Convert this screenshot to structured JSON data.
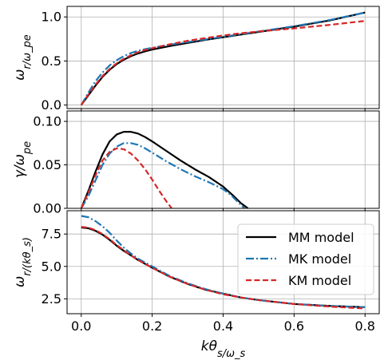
{
  "chart_data": [
    {
      "type": "line",
      "ylabel": "ω_r/ω_pe",
      "xlim": [
        -0.04,
        0.84
      ],
      "ylim": [
        -0.04,
        1.12
      ],
      "xticks": [
        0.0,
        0.2,
        0.4,
        0.6,
        0.8
      ],
      "yticks": [
        0.0,
        0.5,
        1.0
      ],
      "ytick_labels": [
        "0.0",
        "0.5",
        "1.0"
      ],
      "grid": true,
      "series": [
        {
          "name": "MM model",
          "color": "#000000",
          "dash": "solid",
          "x": [
            0,
            0.02,
            0.04,
            0.06,
            0.08,
            0.1,
            0.12,
            0.14,
            0.16,
            0.18,
            0.2,
            0.25,
            0.3,
            0.35,
            0.4,
            0.45,
            0.5,
            0.6,
            0.7,
            0.8
          ],
          "y": [
            0,
            0.11,
            0.22,
            0.32,
            0.4,
            0.465,
            0.515,
            0.555,
            0.585,
            0.61,
            0.63,
            0.67,
            0.705,
            0.74,
            0.77,
            0.8,
            0.83,
            0.89,
            0.96,
            1.05
          ]
        },
        {
          "name": "MK model",
          "color": "#1f77b4",
          "dash": "dashdot",
          "x": [
            0,
            0.02,
            0.04,
            0.06,
            0.08,
            0.1,
            0.12,
            0.14,
            0.16,
            0.18,
            0.2,
            0.25,
            0.3,
            0.35,
            0.4,
            0.45,
            0.5,
            0.6,
            0.7,
            0.8
          ],
          "y": [
            0,
            0.14,
            0.27,
            0.37,
            0.45,
            0.51,
            0.555,
            0.59,
            0.615,
            0.635,
            0.65,
            0.685,
            0.715,
            0.745,
            0.775,
            0.805,
            0.835,
            0.895,
            0.965,
            1.05
          ]
        },
        {
          "name": "KM model",
          "color": "#d62728",
          "dash": "dashed",
          "x": [
            0,
            0.02,
            0.04,
            0.06,
            0.08,
            0.1,
            0.12,
            0.14,
            0.16,
            0.18,
            0.2,
            0.25,
            0.3,
            0.35,
            0.4,
            0.45,
            0.5,
            0.6,
            0.7,
            0.8
          ],
          "y": [
            0,
            0.12,
            0.23,
            0.33,
            0.41,
            0.475,
            0.525,
            0.565,
            0.6,
            0.625,
            0.645,
            0.69,
            0.73,
            0.76,
            0.79,
            0.815,
            0.835,
            0.87,
            0.91,
            0.955
          ]
        }
      ]
    },
    {
      "type": "line",
      "ylabel": "γ/ω_pe",
      "xlim": [
        -0.04,
        0.84
      ],
      "ylim": [
        0,
        0.112
      ],
      "xticks": [
        0.0,
        0.2,
        0.4,
        0.6,
        0.8
      ],
      "yticks": [
        0.0,
        0.05,
        0.1
      ],
      "ytick_labels": [
        "0.00",
        "0.05",
        "0.10"
      ],
      "grid": true,
      "series": [
        {
          "name": "MM model",
          "color": "#000000",
          "dash": "solid",
          "x": [
            0,
            0.02,
            0.04,
            0.06,
            0.08,
            0.1,
            0.12,
            0.14,
            0.16,
            0.18,
            0.2,
            0.24,
            0.28,
            0.32,
            0.36,
            0.4,
            0.43,
            0.45,
            0.47
          ],
          "y": [
            0,
            0.02,
            0.042,
            0.062,
            0.077,
            0.085,
            0.088,
            0.088,
            0.086,
            0.082,
            0.077,
            0.066,
            0.055,
            0.045,
            0.036,
            0.025,
            0.014,
            0.006,
            0
          ]
        },
        {
          "name": "MK model",
          "color": "#1f77b4",
          "dash": "dashdot",
          "x": [
            0,
            0.02,
            0.04,
            0.06,
            0.08,
            0.1,
            0.12,
            0.14,
            0.16,
            0.18,
            0.2,
            0.24,
            0.28,
            0.32,
            0.36,
            0.4,
            0.42,
            0.44,
            0.46
          ],
          "y": [
            0,
            0.014,
            0.032,
            0.05,
            0.063,
            0.071,
            0.075,
            0.075,
            0.073,
            0.069,
            0.064,
            0.054,
            0.045,
            0.037,
            0.03,
            0.022,
            0.016,
            0.008,
            0
          ]
        },
        {
          "name": "KM model",
          "color": "#d62728",
          "dash": "dashed",
          "x": [
            0,
            0.02,
            0.04,
            0.06,
            0.08,
            0.1,
            0.12,
            0.14,
            0.16,
            0.18,
            0.2,
            0.22,
            0.24,
            0.255
          ],
          "y": [
            0,
            0.018,
            0.038,
            0.055,
            0.065,
            0.069,
            0.068,
            0.063,
            0.055,
            0.045,
            0.033,
            0.02,
            0.008,
            0
          ]
        }
      ]
    },
    {
      "type": "line",
      "ylabel": "ω_r/(kθ_s)",
      "xlabel": "kθ_s/ω_s",
      "xlim": [
        -0.04,
        0.84
      ],
      "ylim": [
        1.35,
        9.3
      ],
      "xticks": [
        0.0,
        0.2,
        0.4,
        0.6,
        0.8
      ],
      "xtick_labels": [
        "0.0",
        "0.2",
        "0.4",
        "0.6",
        "0.8"
      ],
      "yticks": [
        2.5,
        5.0,
        7.5
      ],
      "ytick_labels": [
        "2.5",
        "5.0",
        "7.5"
      ],
      "grid": true,
      "legend": "upper-right",
      "series": [
        {
          "name": "MM model",
          "color": "#000000",
          "dash": "solid",
          "x": [
            0,
            0.02,
            0.04,
            0.06,
            0.08,
            0.1,
            0.12,
            0.14,
            0.16,
            0.18,
            0.2,
            0.25,
            0.3,
            0.35,
            0.4,
            0.45,
            0.5,
            0.6,
            0.7,
            0.8
          ],
          "y": [
            8.0,
            7.95,
            7.75,
            7.45,
            7.05,
            6.6,
            6.2,
            5.85,
            5.5,
            5.2,
            4.9,
            4.2,
            3.65,
            3.2,
            2.9,
            2.6,
            2.4,
            2.1,
            1.95,
            1.85
          ]
        },
        {
          "name": "MK model",
          "color": "#1f77b4",
          "dash": "dashdot",
          "x": [
            0,
            0.02,
            0.04,
            0.06,
            0.08,
            0.1,
            0.12,
            0.14,
            0.16,
            0.18,
            0.2,
            0.25,
            0.3,
            0.35,
            0.4,
            0.45,
            0.5,
            0.6,
            0.7,
            0.8
          ],
          "y": [
            8.9,
            8.8,
            8.5,
            8.1,
            7.6,
            7.0,
            6.45,
            6.0,
            5.6,
            5.3,
            5.0,
            4.25,
            3.7,
            3.25,
            2.9,
            2.6,
            2.4,
            2.1,
            1.95,
            1.85
          ]
        },
        {
          "name": "KM model",
          "color": "#d62728",
          "dash": "dashed",
          "x": [
            0,
            0.02,
            0.04,
            0.06,
            0.08,
            0.1,
            0.12,
            0.14,
            0.16,
            0.18,
            0.2,
            0.25,
            0.3,
            0.35,
            0.4,
            0.45,
            0.5,
            0.6,
            0.7,
            0.8
          ],
          "y": [
            8.05,
            8.0,
            7.8,
            7.5,
            7.1,
            6.65,
            6.25,
            5.85,
            5.5,
            5.2,
            4.9,
            4.2,
            3.65,
            3.2,
            2.85,
            2.6,
            2.4,
            2.1,
            1.9,
            1.75
          ]
        }
      ]
    }
  ]
}
